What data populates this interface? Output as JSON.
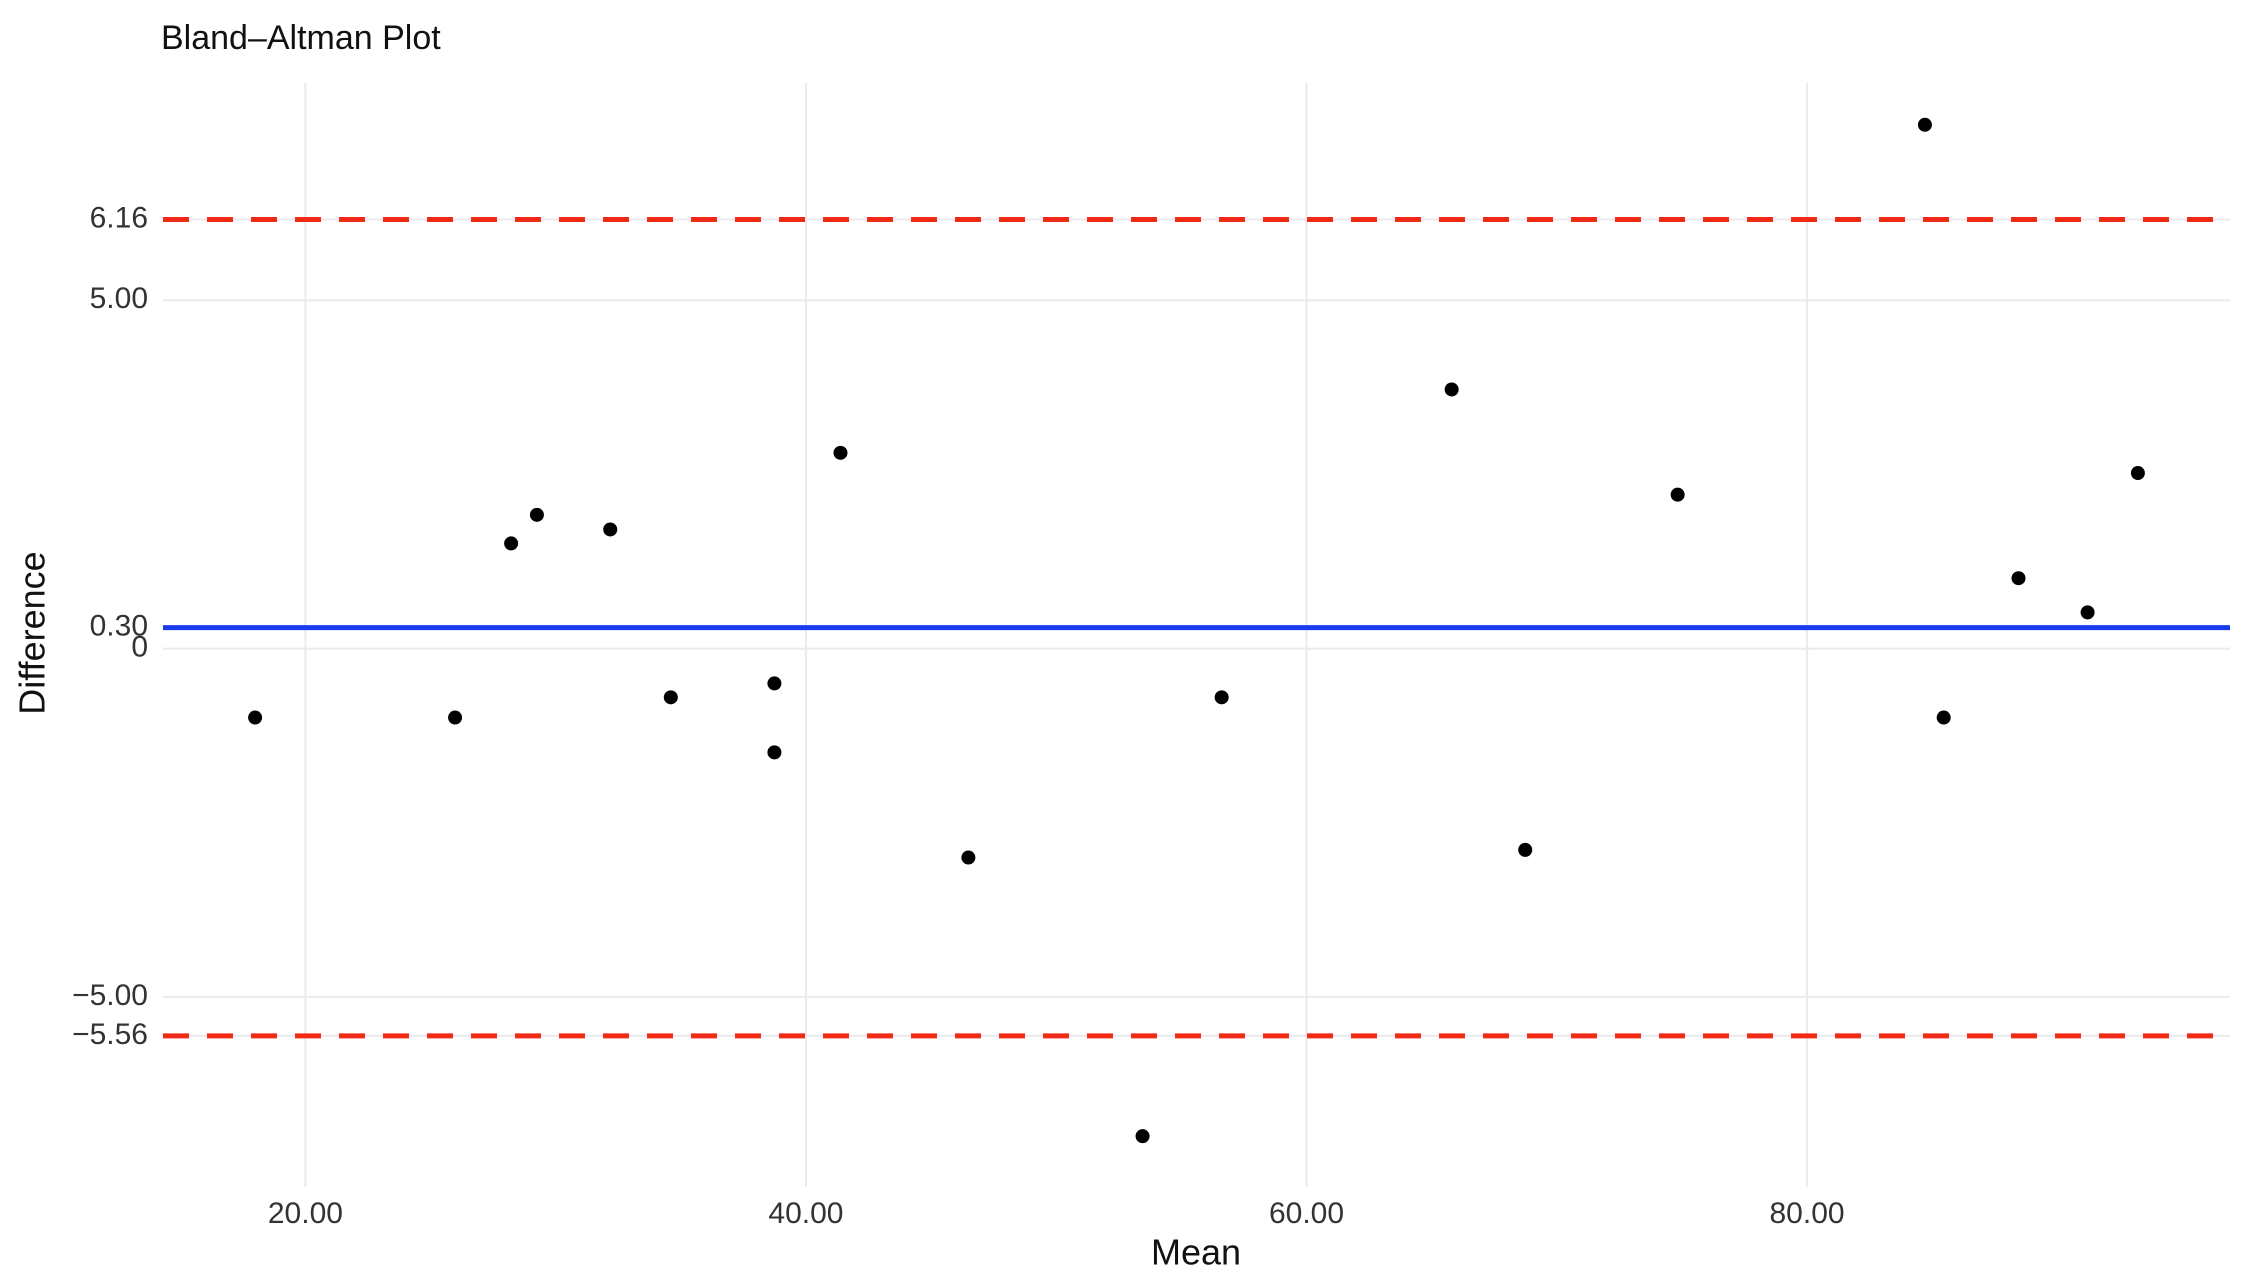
{
  "chart_data": {
    "type": "scatter",
    "title": "Bland–Altman Plot",
    "x_label": "Mean",
    "y_label": "Difference",
    "x": [
      17.99,
      25.98,
      28.22,
      29.25,
      32.18,
      34.6,
      38.74,
      38.74,
      41.38,
      46.49,
      53.45,
      56.61,
      65.8,
      68.74,
      74.83,
      84.71,
      85.46,
      88.45,
      91.21,
      93.22
    ],
    "values": [
      -0.99,
      -0.99,
      1.51,
      1.92,
      1.71,
      -0.7,
      -0.5,
      -1.49,
      2.81,
      -3.0,
      -7.0,
      -0.7,
      3.72,
      -2.89,
      2.21,
      7.52,
      -0.99,
      1.01,
      0.52,
      2.52
    ],
    "color": "#000000",
    "xlim": [
      14.31,
      96.9
    ],
    "ylim": [
      -7.73,
      8.12
    ],
    "xticks": [
      {
        "value": 20,
        "label": "20.00"
      },
      {
        "value": 40,
        "label": "40.00"
      },
      {
        "value": 60,
        "label": "60.00"
      },
      {
        "value": 80,
        "label": "80.00"
      }
    ],
    "yticks": [
      {
        "value": -5.56,
        "label": "−5.56"
      },
      {
        "value": -5,
        "label": "−5.00"
      },
      0,
      {
        "value": 0.3,
        "label": "0.30"
      },
      {
        "value": 5,
        "label": "5.00"
      },
      {
        "value": 6.16,
        "label": "6.16"
      }
    ],
    "reference_lines": [
      {
        "value": 0.3,
        "color": "#1a3cf0",
        "dashed": false
      },
      {
        "value": 6.16,
        "color": "#f02a14",
        "dashed": true
      },
      {
        "value": -5.56,
        "color": "#f02a14",
        "dashed": true
      }
    ],
    "grid": true
  }
}
